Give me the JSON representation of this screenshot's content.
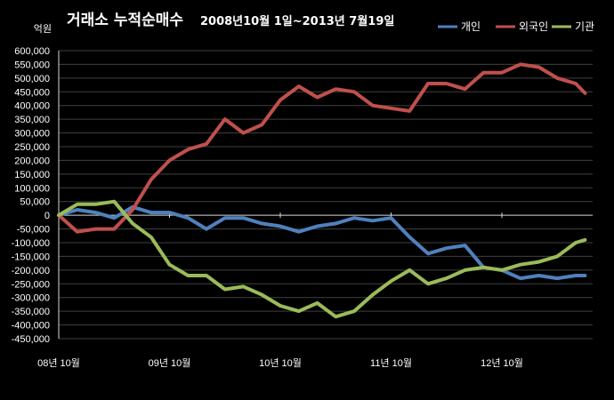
{
  "chart_data": {
    "type": "line",
    "title": "거래소  누적순매수",
    "subtitle": "2008년10월 1일~2013년 7월19일",
    "ylabel": "억원",
    "ylim": [
      -450000,
      600000
    ],
    "grid": true,
    "legend_position": "top-right",
    "yticks": [
      "600,000",
      "550,000",
      "500,000",
      "450,000",
      "400,000",
      "350,000",
      "300,000",
      "250,000",
      "200,000",
      "150,000",
      "100,000",
      "50,000",
      "0",
      "-50,000",
      "-100,000",
      "-150,000",
      "-200,000",
      "-250,000",
      "-300,000",
      "-350,000",
      "-400,000",
      "-450,000"
    ],
    "xticks": [
      "08년 10월",
      "09년 10월",
      "10년 10월",
      "11년 10월",
      "12년 10월"
    ],
    "x": [
      "2008-10",
      "2008-12",
      "2009-02",
      "2009-04",
      "2009-06",
      "2009-08",
      "2009-10",
      "2009-12",
      "2010-02",
      "2010-04",
      "2010-06",
      "2010-08",
      "2010-10",
      "2010-12",
      "2011-02",
      "2011-04",
      "2011-06",
      "2011-08",
      "2011-10",
      "2011-12",
      "2012-02",
      "2012-04",
      "2012-06",
      "2012-08",
      "2012-10",
      "2012-12",
      "2013-02",
      "2013-04",
      "2013-06",
      "2013-07"
    ],
    "series": [
      {
        "name": "개인",
        "color": "#4f81bd",
        "values": [
          0,
          20000,
          10000,
          -10000,
          30000,
          10000,
          10000,
          -10000,
          -50000,
          -10000,
          -10000,
          -30000,
          -40000,
          -60000,
          -40000,
          -30000,
          -10000,
          -20000,
          -10000,
          -80000,
          -140000,
          -120000,
          -110000,
          -190000,
          -200000,
          -230000,
          -220000,
          -230000,
          -220000,
          -220000
        ]
      },
      {
        "name": "외국인",
        "color": "#c0504d",
        "values": [
          0,
          -60000,
          -50000,
          -50000,
          20000,
          130000,
          200000,
          240000,
          260000,
          350000,
          300000,
          330000,
          420000,
          470000,
          430000,
          460000,
          450000,
          400000,
          390000,
          380000,
          480000,
          480000,
          460000,
          520000,
          520000,
          550000,
          540000,
          500000,
          480000,
          445000
        ]
      },
      {
        "name": "기관",
        "color": "#9bbb59",
        "values": [
          0,
          40000,
          40000,
          50000,
          -30000,
          -80000,
          -180000,
          -220000,
          -220000,
          -270000,
          -260000,
          -290000,
          -330000,
          -350000,
          -320000,
          -370000,
          -350000,
          -290000,
          -240000,
          -200000,
          -250000,
          -230000,
          -200000,
          -190000,
          -200000,
          -180000,
          -170000,
          -150000,
          -100000,
          -90000
        ]
      }
    ]
  }
}
